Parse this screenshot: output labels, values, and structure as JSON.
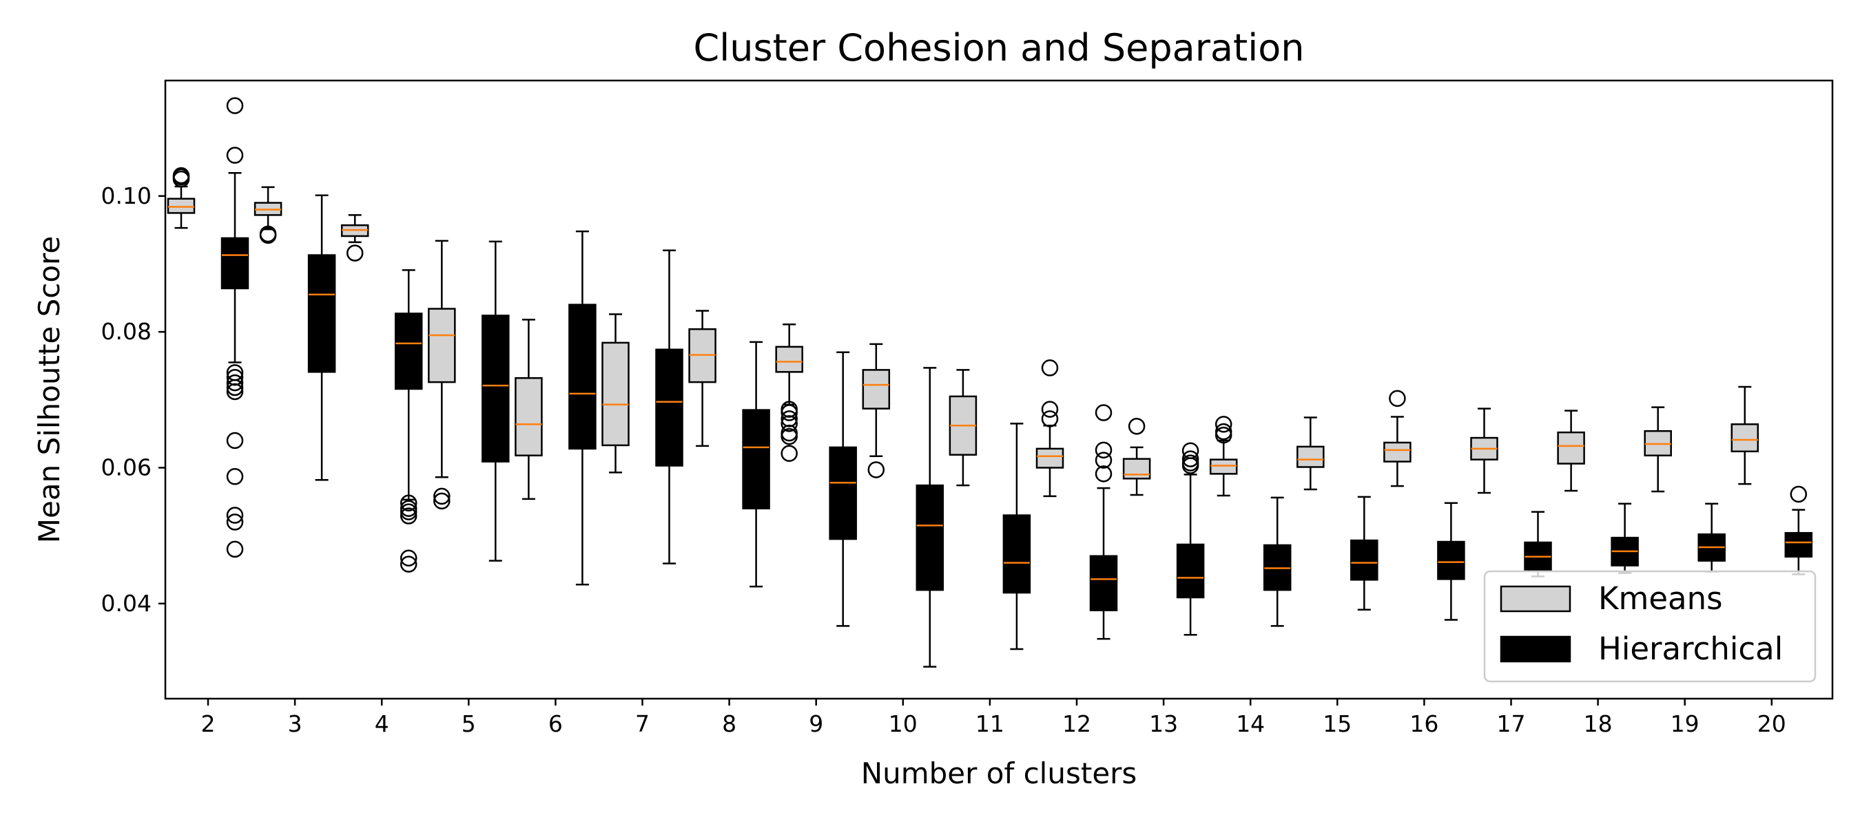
{
  "chart_data": {
    "type": "box",
    "title": "Cluster Cohesion and Separation",
    "xlabel": "Number of clusters",
    "ylabel": "Mean Silhoutte Score",
    "categories": [
      "2",
      "3",
      "4",
      "5",
      "6",
      "7",
      "8",
      "9",
      "10",
      "11",
      "12",
      "13",
      "14",
      "15",
      "16",
      "17",
      "18",
      "19",
      "20"
    ],
    "ylim": [
      0.026,
      0.117
    ],
    "yticks": [
      0.04,
      0.06,
      0.08,
      0.1
    ],
    "ytick_labels": [
      "0.04",
      "0.06",
      "0.08",
      "0.10"
    ],
    "grid": false,
    "legend_position": "lower right",
    "colors": {
      "kmeans_fill": "#d3d3d3",
      "hierarchical_fill": "#000000",
      "median": "#ff7f0e",
      "edge": "#000000"
    },
    "series": [
      {
        "name": "Kmeans",
        "boxes": [
          {
            "whislo": 0.0953,
            "q1": 0.0975,
            "med": 0.0984,
            "q3": 0.0996,
            "whishi": 0.1014,
            "fliers": [
              0.1025,
              0.103,
              0.1028
            ]
          },
          {
            "whislo": 0.0951,
            "q1": 0.0972,
            "med": 0.098,
            "q3": 0.099,
            "whishi": 0.1013,
            "fliers": [
              0.0942,
              0.0944
            ]
          },
          {
            "whislo": 0.0932,
            "q1": 0.0941,
            "med": 0.095,
            "q3": 0.0957,
            "whishi": 0.0972,
            "fliers": [
              0.0916
            ]
          },
          {
            "whislo": 0.0586,
            "q1": 0.0726,
            "med": 0.0795,
            "q3": 0.0834,
            "whishi": 0.0934,
            "fliers": [
              0.0551,
              0.0558
            ]
          },
          {
            "whislo": 0.0554,
            "q1": 0.0618,
            "med": 0.0664,
            "q3": 0.0732,
            "whishi": 0.0818,
            "fliers": []
          },
          {
            "whislo": 0.0593,
            "q1": 0.0633,
            "med": 0.0693,
            "q3": 0.0784,
            "whishi": 0.0826,
            "fliers": []
          },
          {
            "whislo": 0.0632,
            "q1": 0.0726,
            "med": 0.0766,
            "q3": 0.0804,
            "whishi": 0.0831,
            "fliers": []
          },
          {
            "whislo": 0.0693,
            "q1": 0.0741,
            "med": 0.0756,
            "q3": 0.0778,
            "whishi": 0.0811,
            "fliers": [
              0.0621,
              0.0646,
              0.0651,
              0.0665,
              0.0672,
              0.0681,
              0.0686
            ]
          },
          {
            "whislo": 0.0617,
            "q1": 0.0687,
            "med": 0.0722,
            "q3": 0.0744,
            "whishi": 0.0782,
            "fliers": [
              0.0597
            ]
          },
          {
            "whislo": 0.0574,
            "q1": 0.0619,
            "med": 0.0662,
            "q3": 0.0705,
            "whishi": 0.0744,
            "fliers": []
          },
          {
            "whislo": 0.0558,
            "q1": 0.06,
            "med": 0.0617,
            "q3": 0.0628,
            "whishi": 0.0662,
            "fliers": [
              0.0672,
              0.0686,
              0.0747
            ]
          },
          {
            "whislo": 0.056,
            "q1": 0.0584,
            "med": 0.059,
            "q3": 0.0613,
            "whishi": 0.063,
            "fliers": [
              0.0661
            ]
          },
          {
            "whislo": 0.0559,
            "q1": 0.0591,
            "med": 0.0603,
            "q3": 0.0612,
            "whishi": 0.064,
            "fliers": [
              0.0648,
              0.0653,
              0.0664
            ]
          },
          {
            "whislo": 0.0568,
            "q1": 0.0601,
            "med": 0.0612,
            "q3": 0.0631,
            "whishi": 0.0674,
            "fliers": []
          },
          {
            "whislo": 0.0573,
            "q1": 0.0609,
            "med": 0.0626,
            "q3": 0.0637,
            "whishi": 0.0675,
            "fliers": [
              0.0702
            ]
          },
          {
            "whislo": 0.0563,
            "q1": 0.0612,
            "med": 0.0628,
            "q3": 0.0644,
            "whishi": 0.0687,
            "fliers": []
          },
          {
            "whislo": 0.0566,
            "q1": 0.0606,
            "med": 0.0632,
            "q3": 0.0652,
            "whishi": 0.0684,
            "fliers": []
          },
          {
            "whislo": 0.0565,
            "q1": 0.0618,
            "med": 0.0635,
            "q3": 0.0654,
            "whishi": 0.0689,
            "fliers": []
          },
          {
            "whislo": 0.0576,
            "q1": 0.0624,
            "med": 0.0641,
            "q3": 0.0664,
            "whishi": 0.0719,
            "fliers": []
          }
        ]
      },
      {
        "name": "Hierarchical",
        "boxes": [
          {
            "whislo": 0.0755,
            "q1": 0.0864,
            "med": 0.0913,
            "q3": 0.0938,
            "whishi": 0.1034,
            "fliers": [
              0.048,
              0.052,
              0.053,
              0.0587,
              0.064,
              0.0712,
              0.0718,
              0.0725,
              0.0733,
              0.074,
              0.106,
              0.1133
            ]
          },
          {
            "whislo": 0.0582,
            "q1": 0.0741,
            "med": 0.0855,
            "q3": 0.0913,
            "whishi": 0.1001,
            "fliers": []
          },
          {
            "whislo": 0.0553,
            "q1": 0.0716,
            "med": 0.0783,
            "q3": 0.0827,
            "whishi": 0.0891,
            "fliers": [
              0.0458,
              0.0467,
              0.0529,
              0.0535,
              0.054,
              0.0548
            ]
          },
          {
            "whislo": 0.0463,
            "q1": 0.0609,
            "med": 0.0721,
            "q3": 0.0824,
            "whishi": 0.0933,
            "fliers": []
          },
          {
            "whislo": 0.0428,
            "q1": 0.0628,
            "med": 0.0709,
            "q3": 0.084,
            "whishi": 0.0948,
            "fliers": []
          },
          {
            "whislo": 0.0459,
            "q1": 0.0603,
            "med": 0.0697,
            "q3": 0.0774,
            "whishi": 0.092,
            "fliers": []
          },
          {
            "whislo": 0.0425,
            "q1": 0.054,
            "med": 0.063,
            "q3": 0.0685,
            "whishi": 0.0785,
            "fliers": []
          },
          {
            "whislo": 0.0367,
            "q1": 0.0495,
            "med": 0.0578,
            "q3": 0.063,
            "whishi": 0.077,
            "fliers": []
          },
          {
            "whislo": 0.0307,
            "q1": 0.042,
            "med": 0.0515,
            "q3": 0.0574,
            "whishi": 0.0747,
            "fliers": []
          },
          {
            "whislo": 0.0333,
            "q1": 0.0416,
            "med": 0.046,
            "q3": 0.053,
            "whishi": 0.0665,
            "fliers": []
          },
          {
            "whislo": 0.0348,
            "q1": 0.039,
            "med": 0.0436,
            "q3": 0.047,
            "whishi": 0.057,
            "fliers": [
              0.0591,
              0.0611,
              0.0626,
              0.0681
            ]
          },
          {
            "whislo": 0.0354,
            "q1": 0.0409,
            "med": 0.0438,
            "q3": 0.0487,
            "whishi": 0.059,
            "fliers": [
              0.0603,
              0.0607,
              0.0613,
              0.0625
            ]
          },
          {
            "whislo": 0.0367,
            "q1": 0.042,
            "med": 0.0452,
            "q3": 0.0486,
            "whishi": 0.0556,
            "fliers": []
          },
          {
            "whislo": 0.0391,
            "q1": 0.0435,
            "med": 0.046,
            "q3": 0.0493,
            "whishi": 0.0557,
            "fliers": []
          },
          {
            "whislo": 0.0376,
            "q1": 0.0436,
            "med": 0.0461,
            "q3": 0.0491,
            "whishi": 0.0548,
            "fliers": []
          },
          {
            "whislo": 0.044,
            "q1": 0.0448,
            "med": 0.0469,
            "q3": 0.049,
            "whishi": 0.0535,
            "fliers": []
          },
          {
            "whislo": 0.0445,
            "q1": 0.0456,
            "med": 0.0477,
            "q3": 0.0497,
            "whishi": 0.0547,
            "fliers": []
          },
          {
            "whislo": 0.0447,
            "q1": 0.0463,
            "med": 0.0483,
            "q3": 0.0502,
            "whishi": 0.0547,
            "fliers": []
          },
          {
            "whislo": 0.0443,
            "q1": 0.0469,
            "med": 0.049,
            "q3": 0.0504,
            "whishi": 0.0538,
            "fliers": [
              0.0561
            ]
          }
        ]
      }
    ],
    "legend": [
      "Kmeans",
      "Hierarchical"
    ]
  }
}
